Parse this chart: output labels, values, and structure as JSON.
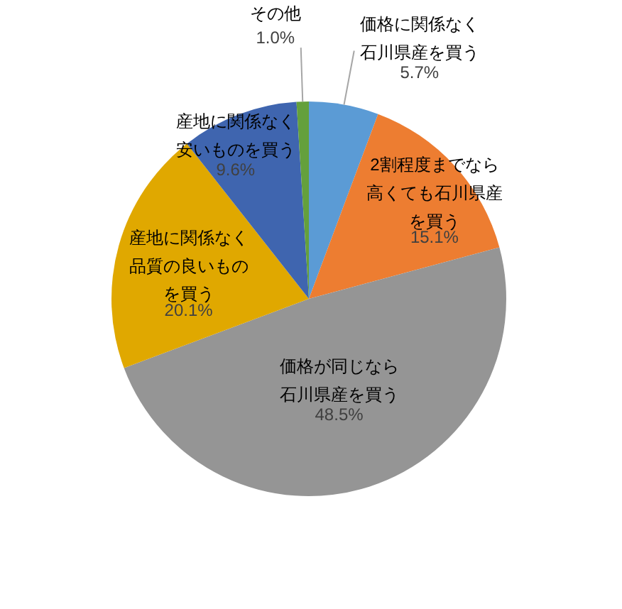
{
  "chart_data": {
    "type": "pie",
    "categories": [
      "価格に関係なく石川県産を買う",
      "2割程度までなら高くても石川県産を買う",
      "価格が同じなら石川県産を買う",
      "産地に関係なく品質の良いものを買う",
      "産地に関係なく安いものを買う",
      "その他"
    ],
    "values": [
      5.7,
      15.1,
      48.5,
      20.1,
      9.6,
      1.0
    ],
    "value_labels": [
      "5.7%",
      "15.1%",
      "48.5%",
      "20.1%",
      "9.6%",
      "1.0%"
    ],
    "colors": [
      "#5b9bd5",
      "#ed7d31",
      "#959595",
      "#e0a800",
      "#3f65af",
      "#64a03c"
    ]
  }
}
